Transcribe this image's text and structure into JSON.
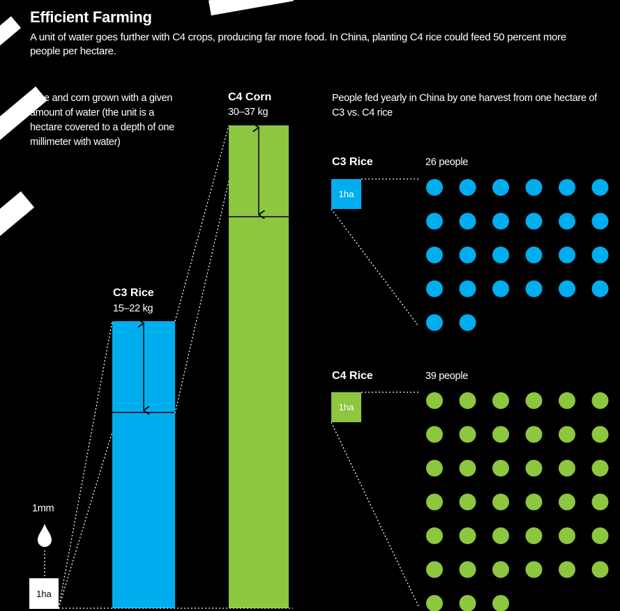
{
  "title": "Efficient Farming",
  "subtitle": "A unit of water goes further with C4 crops, producing far more food. In China, planting C4 rice could feed 50 percent more people per hectare.",
  "left_note": "Rice and corn grown with a given amount of water (the unit is a hectare covered to a depth of one millimeter with water)",
  "right_note": "People fed yearly in China by one harvest from one hectare of C3 vs. C4 rice",
  "water_label": "1mm",
  "unit_label": "1ha",
  "colors": {
    "background": "#000000",
    "c3": "#00aeef",
    "c4": "#8dc63f",
    "unit_box": "#ffffff"
  },
  "chart_data": [
    {
      "type": "bar",
      "categories": [
        "C3 Rice",
        "C4 Corn"
      ],
      "ranges": [
        {
          "name": "C3 Rice",
          "label": "15–22 kg",
          "min": 15,
          "max": 22
        },
        {
          "name": "C4 Corn",
          "label": "30–37 kg",
          "min": 30,
          "max": 37
        }
      ],
      "unit": "kg"
    },
    {
      "type": "table",
      "categories": [
        "C3 Rice",
        "C4 Rice"
      ],
      "values": [
        26,
        39
      ],
      "value_labels": [
        "26 people",
        "39 people"
      ],
      "box_label": "1ha"
    }
  ]
}
